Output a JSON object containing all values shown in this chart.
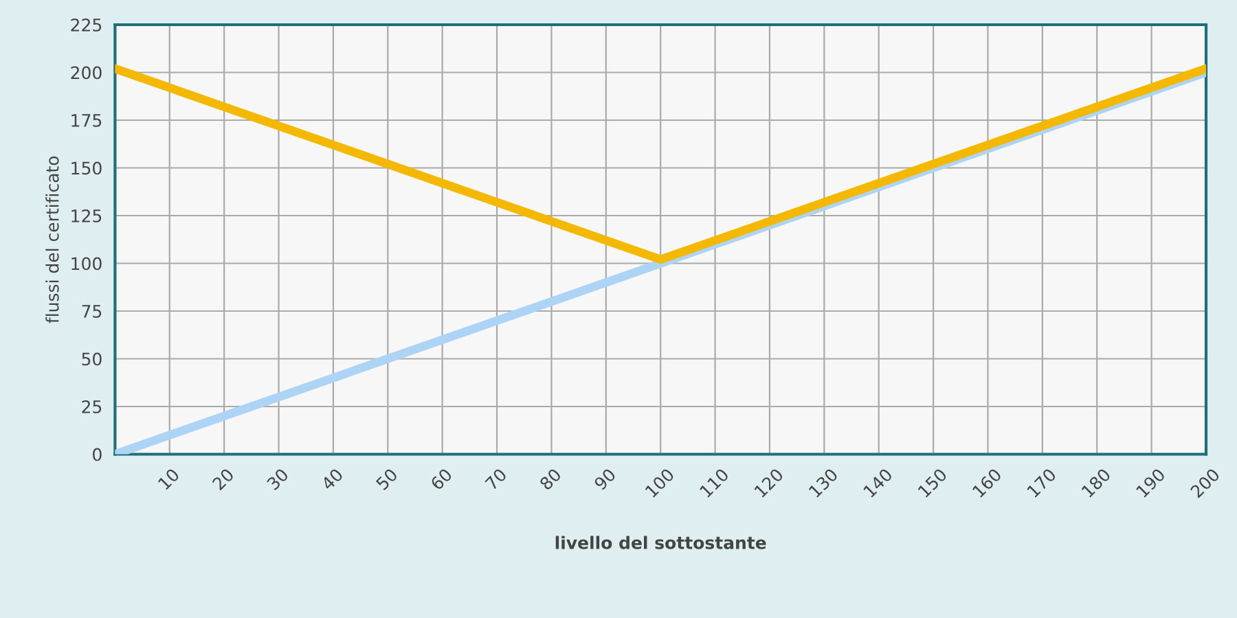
{
  "chart_data": {
    "type": "line",
    "xlabel": "livello del sottostante",
    "ylabel": "flussi del certificato",
    "x": [
      0,
      100,
      200
    ],
    "series": [
      {
        "color": "#aed4f5",
        "x": [
          0,
          200
        ],
        "values": [
          0,
          200
        ]
      },
      {
        "color": "#f5b800",
        "values": [
          202,
          102,
          202
        ]
      }
    ],
    "xlim": [
      0,
      200
    ],
    "ylim": [
      0,
      225
    ],
    "xticks": [
      10,
      20,
      30,
      40,
      50,
      60,
      70,
      80,
      90,
      100,
      110,
      120,
      130,
      140,
      150,
      160,
      170,
      180,
      190,
      200
    ],
    "yticks": [
      0,
      25,
      50,
      75,
      100,
      125,
      150,
      175,
      200,
      225
    ],
    "grid": true,
    "marker": "none",
    "line_style": "solid"
  }
}
